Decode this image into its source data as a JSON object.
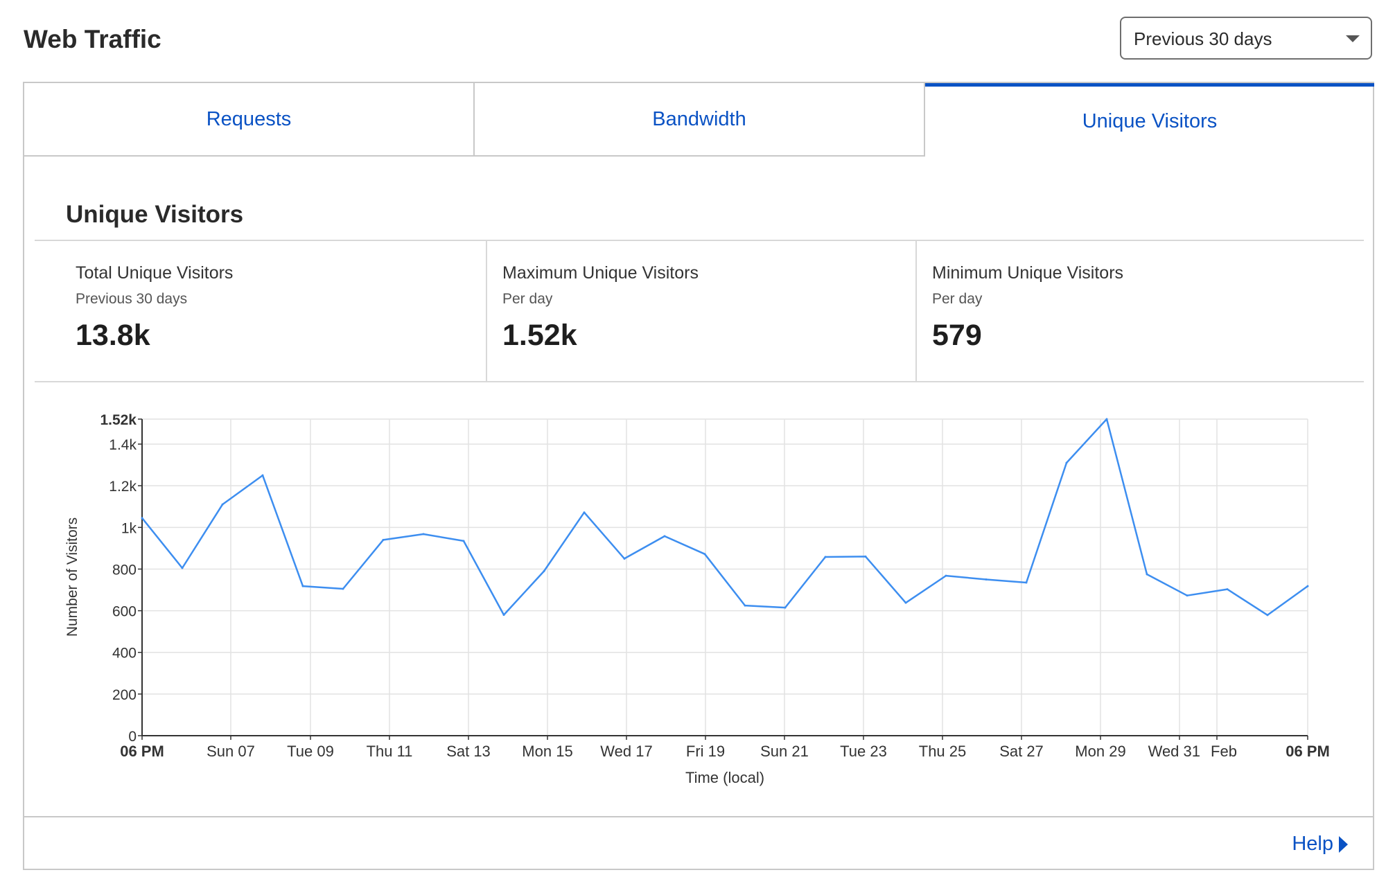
{
  "page": {
    "title": "Web Traffic"
  },
  "range_select": {
    "value": "Previous 30 days"
  },
  "tabs": [
    {
      "label": "Requests",
      "active": false
    },
    {
      "label": "Bandwidth",
      "active": false
    },
    {
      "label": "Unique Visitors",
      "active": true
    }
  ],
  "section": {
    "title": "Unique Visitors"
  },
  "stats": [
    {
      "label": "Total Unique Visitors",
      "sublabel": "Previous 30 days",
      "value": "13.8k"
    },
    {
      "label": "Maximum Unique Visitors",
      "sublabel": "Per day",
      "value": "1.52k"
    },
    {
      "label": "Minimum Unique Visitors",
      "sublabel": "Per day",
      "value": "579"
    }
  ],
  "help": {
    "label": "Help"
  },
  "colors": {
    "accent": "#0a52c4",
    "series": "#3d8ef0",
    "grid": "#e2e2e2"
  },
  "chart_data": {
    "type": "line",
    "title": "",
    "xlabel": "Time (local)",
    "ylabel": "Number of Visitors",
    "ylim": [
      0,
      1520
    ],
    "y_ticks": [
      {
        "value": 0,
        "label": "0"
      },
      {
        "value": 200,
        "label": "200"
      },
      {
        "value": 400,
        "label": "400"
      },
      {
        "value": 600,
        "label": "600"
      },
      {
        "value": 800,
        "label": "800"
      },
      {
        "value": 1000,
        "label": "1k"
      },
      {
        "value": 1200,
        "label": "1.2k"
      },
      {
        "value": 1400,
        "label": "1.4k"
      },
      {
        "value": 1520,
        "label": "1.52k",
        "bold": true
      }
    ],
    "x_ticks": [
      {
        "label": "06 PM",
        "bold": true
      },
      {
        "label": "Sun 07"
      },
      {
        "label": "Tue 09"
      },
      {
        "label": "Thu 11"
      },
      {
        "label": "Sat 13"
      },
      {
        "label": "Mon 15"
      },
      {
        "label": "Wed 17"
      },
      {
        "label": "Fri 19"
      },
      {
        "label": "Sun 21"
      },
      {
        "label": "Tue 23"
      },
      {
        "label": "Thu 25"
      },
      {
        "label": "Sat 27"
      },
      {
        "label": "Mon 29"
      },
      {
        "label": "Wed 31"
      },
      {
        "label": "Feb"
      },
      {
        "label": "06 PM",
        "bold": true
      }
    ],
    "grid": true,
    "series": [
      {
        "values": [
          1045,
          805,
          1110,
          1250,
          718,
          705,
          940,
          968,
          935,
          580,
          790,
          1072,
          850,
          958,
          872,
          625,
          615,
          858,
          860,
          638,
          768,
          750,
          735,
          1310,
          1520,
          775,
          673,
          703,
          579,
          718
        ]
      }
    ]
  }
}
